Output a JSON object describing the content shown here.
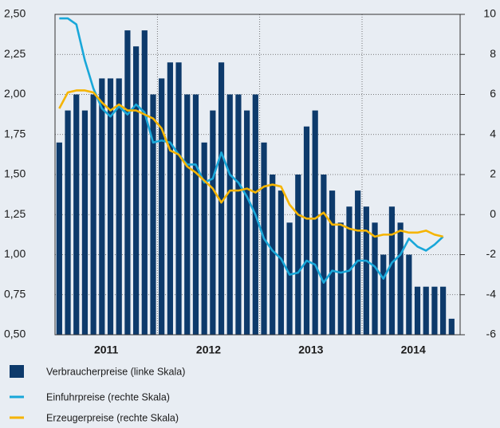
{
  "chart_data": {
    "type": "combo",
    "categories": [
      null,
      null,
      null,
      null,
      null,
      null,
      null,
      null,
      null,
      null,
      null,
      null,
      null,
      null,
      null,
      null,
      null,
      null,
      null,
      null,
      null,
      null,
      null,
      null,
      null,
      null,
      null,
      null,
      null,
      null,
      null,
      null,
      null,
      null,
      null,
      null,
      null,
      null,
      null,
      null,
      null,
      null,
      null,
      null,
      null,
      null,
      null
    ],
    "xticks": [
      {
        "value": 5.5,
        "label": "2011"
      },
      {
        "value": 17.5,
        "label": "2012"
      },
      {
        "value": 29.5,
        "label": "2013"
      },
      {
        "value": 41.5,
        "label": "2014"
      }
    ],
    "ylim": [
      0.5,
      2.5
    ],
    "yticks": [
      {
        "value": 0.5,
        "label": "0,50"
      },
      {
        "value": 0.75,
        "label": "0,75"
      },
      {
        "value": 1.0,
        "label": "1,00"
      },
      {
        "value": 1.25,
        "label": "1,25"
      },
      {
        "value": 1.5,
        "label": "1,50"
      },
      {
        "value": 1.75,
        "label": "1,75"
      },
      {
        "value": 2.0,
        "label": "2,00"
      },
      {
        "value": 2.25,
        "label": "2,25"
      },
      {
        "value": 2.5,
        "label": "2,50"
      }
    ],
    "y2lim": [
      -6,
      10
    ],
    "y2ticks": [
      -6,
      -4,
      -2,
      0,
      2,
      4,
      6,
      8,
      10
    ],
    "grid": true,
    "series": [
      {
        "name": "Verbraucherpreise (linke Skala)",
        "type": "bar",
        "color": "#0d3a6b",
        "values": [
          1.7,
          1.9,
          2.0,
          1.9,
          2.0,
          2.1,
          2.1,
          2.1,
          2.4,
          2.3,
          2.4,
          2.0,
          2.1,
          2.2,
          2.2,
          2.0,
          2.0,
          1.7,
          1.9,
          2.2,
          2.0,
          2.0,
          1.9,
          2.0,
          1.7,
          1.5,
          1.4,
          1.2,
          1.5,
          1.8,
          1.9,
          1.5,
          1.4,
          1.2,
          1.3,
          1.4,
          1.3,
          1.2,
          1.0,
          1.3,
          1.2,
          1.0,
          0.8,
          0.8,
          0.8,
          0.8,
          0.6
        ]
      },
      {
        "name": "Einfuhrpreise (rechte Skala)",
        "type": "line",
        "axis": "y2",
        "color": "#19a7d9",
        "values": [
          9.8,
          9.8,
          9.5,
          7.7,
          6.3,
          5.3,
          4.9,
          5.4,
          5.0,
          5.5,
          5.1,
          3.6,
          3.7,
          3.6,
          3.0,
          2.5,
          2.5,
          1.6,
          1.8,
          3.1,
          2.0,
          1.6,
          0.9,
          0.0,
          -1.2,
          -1.8,
          -2.2,
          -3.0,
          -2.9,
          -2.3,
          -2.5,
          -3.4,
          -2.8,
          -2.9,
          -2.8,
          -2.3,
          -2.3,
          -2.6,
          -3.2,
          -2.4,
          -2.0,
          -1.2,
          -1.6,
          -1.8,
          -1.5,
          -1.1,
          null
        ]
      },
      {
        "name": "Erzeugerpreise (rechte Skala)",
        "type": "line",
        "axis": "y2",
        "color": "#f5b400",
        "values": [
          5.3,
          6.1,
          6.2,
          6.2,
          6.1,
          5.6,
          5.2,
          5.5,
          5.2,
          5.2,
          5.0,
          4.8,
          4.3,
          3.2,
          3.0,
          2.4,
          2.1,
          1.7,
          1.3,
          0.6,
          1.2,
          1.2,
          1.3,
          1.1,
          1.4,
          1.5,
          1.4,
          0.5,
          0.0,
          -0.2,
          -0.2,
          0.1,
          -0.5,
          -0.5,
          -0.7,
          -0.8,
          -0.8,
          -1.1,
          -1.0,
          -1.0,
          -0.8,
          -0.9,
          -0.9,
          -0.8,
          -1.0,
          -1.1,
          null
        ]
      }
    ]
  }
}
